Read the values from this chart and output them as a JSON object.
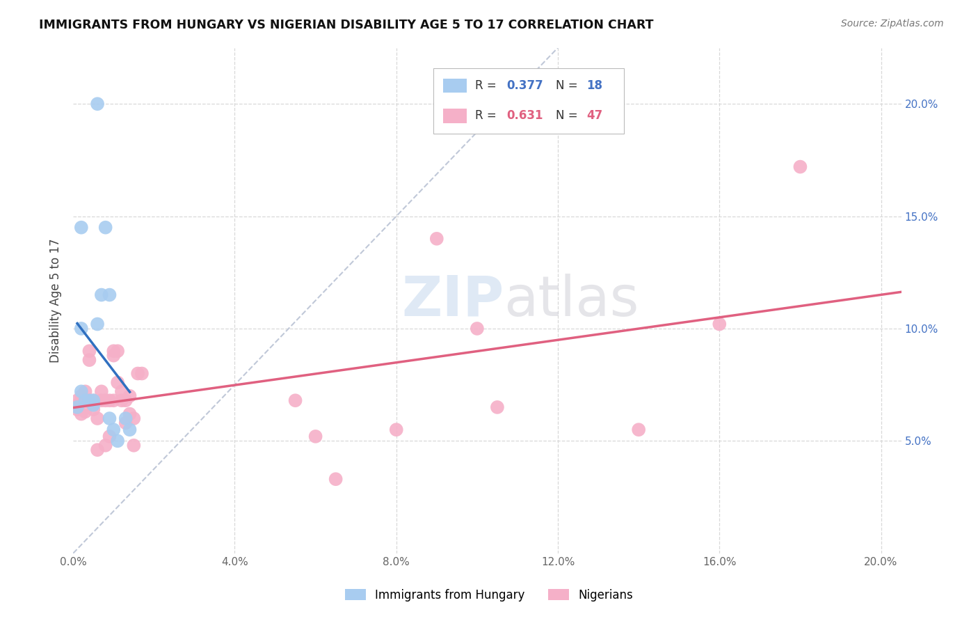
{
  "title": "IMMIGRANTS FROM HUNGARY VS NIGERIAN DISABILITY AGE 5 TO 17 CORRELATION CHART",
  "source": "Source: ZipAtlas.com",
  "ylabel": "Disability Age 5 to 17",
  "xlim": [
    0.0,
    0.205
  ],
  "ylim": [
    0.0,
    0.225
  ],
  "xticks": [
    0.0,
    0.04,
    0.08,
    0.12,
    0.16,
    0.2
  ],
  "yticks": [
    0.05,
    0.1,
    0.15,
    0.2
  ],
  "ytick_labels": [
    "5.0%",
    "10.0%",
    "15.0%",
    "20.0%"
  ],
  "xtick_labels": [
    "0.0%",
    "4.0%",
    "8.0%",
    "12.0%",
    "16.0%",
    "20.0%"
  ],
  "hungary_R": 0.377,
  "hungary_N": 18,
  "nigeria_R": 0.631,
  "nigeria_N": 47,
  "hungary_color": "#A8CCF0",
  "nigeria_color": "#F5B0C8",
  "hungary_line_color": "#3070C0",
  "nigeria_line_color": "#E06080",
  "ref_line_color": "#C0C8D8",
  "background_color": "#FFFFFF",
  "grid_color": "#D8D8D8",
  "watermark_zip": "ZIP",
  "watermark_atlas": "atlas",
  "hungary_x": [
    0.001,
    0.002,
    0.002,
    0.003,
    0.004,
    0.005,
    0.005,
    0.006,
    0.007,
    0.008,
    0.009,
    0.009,
    0.01,
    0.011,
    0.013,
    0.014,
    0.002,
    0.006
  ],
  "hungary_y": [
    0.065,
    0.072,
    0.145,
    0.068,
    0.068,
    0.068,
    0.066,
    0.102,
    0.115,
    0.145,
    0.115,
    0.06,
    0.055,
    0.05,
    0.06,
    0.055,
    0.1,
    0.2
  ],
  "nigeria_x": [
    0.001,
    0.001,
    0.001,
    0.002,
    0.002,
    0.002,
    0.003,
    0.003,
    0.003,
    0.004,
    0.004,
    0.004,
    0.005,
    0.005,
    0.006,
    0.006,
    0.007,
    0.007,
    0.008,
    0.008,
    0.009,
    0.009,
    0.01,
    0.01,
    0.01,
    0.011,
    0.011,
    0.012,
    0.012,
    0.013,
    0.013,
    0.014,
    0.014,
    0.015,
    0.015,
    0.016,
    0.017,
    0.055,
    0.06,
    0.065,
    0.08,
    0.09,
    0.1,
    0.105,
    0.14,
    0.16,
    0.18
  ],
  "nigeria_y": [
    0.068,
    0.066,
    0.064,
    0.07,
    0.068,
    0.062,
    0.072,
    0.068,
    0.063,
    0.09,
    0.086,
    0.068,
    0.064,
    0.068,
    0.046,
    0.06,
    0.072,
    0.068,
    0.068,
    0.048,
    0.068,
    0.052,
    0.09,
    0.088,
    0.068,
    0.09,
    0.076,
    0.072,
    0.068,
    0.068,
    0.058,
    0.07,
    0.062,
    0.06,
    0.048,
    0.08,
    0.08,
    0.068,
    0.052,
    0.033,
    0.055,
    0.14,
    0.1,
    0.065,
    0.055,
    0.102,
    0.172
  ],
  "ref_line_x": [
    0.0,
    0.12
  ],
  "ref_line_y": [
    0.0,
    0.225
  ]
}
